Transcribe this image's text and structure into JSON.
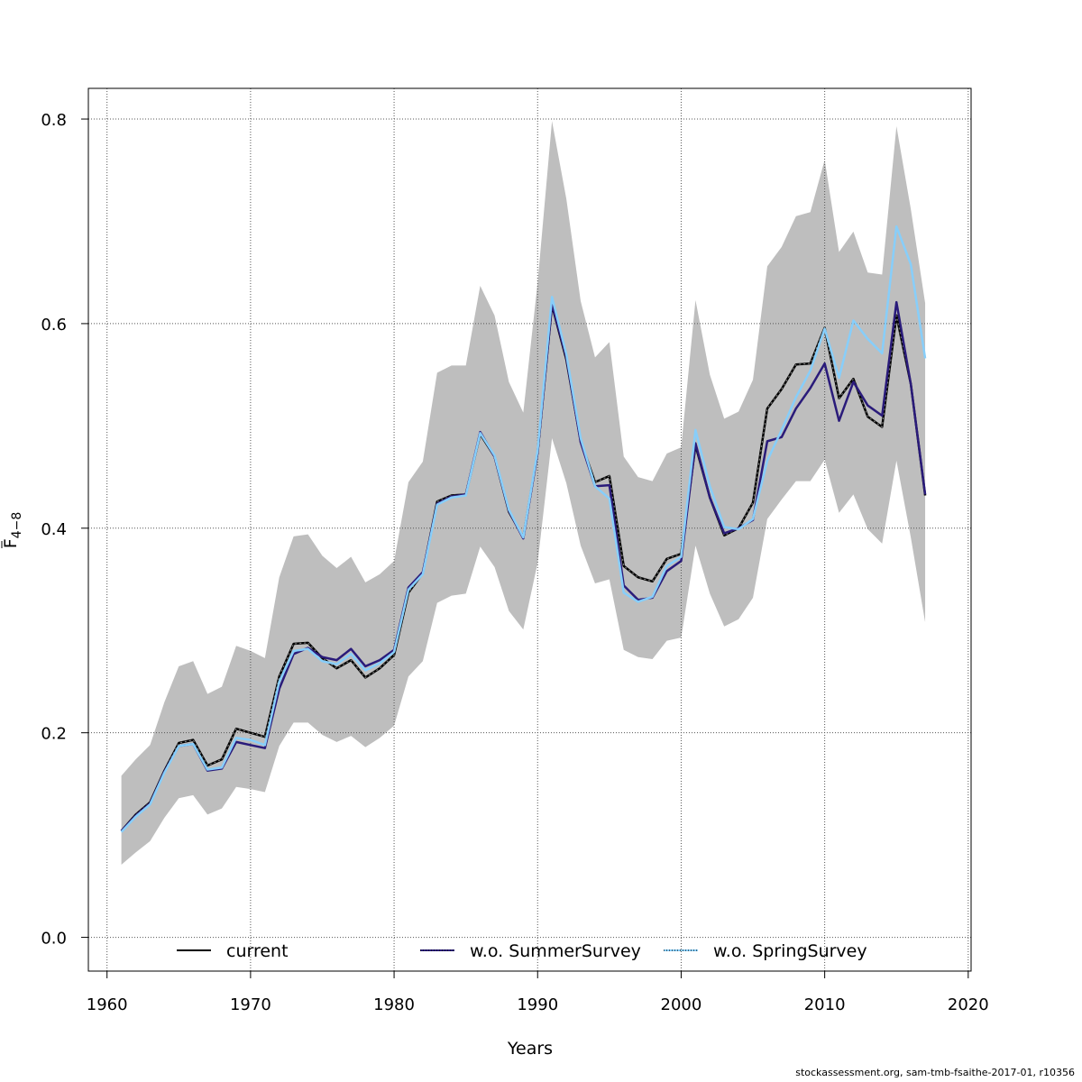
{
  "chart_data": {
    "type": "line",
    "title": "",
    "xlabel": "Years",
    "ylabel_main": "F",
    "ylabel_sub": "4−8",
    "xlim": [
      1958.7,
      2020.2
    ],
    "ylim": [
      -0.033,
      0.83
    ],
    "xticks": [
      1960,
      1970,
      1980,
      1990,
      2000,
      2010,
      2020
    ],
    "yticks": [
      0.0,
      0.2,
      0.4,
      0.6,
      0.8
    ],
    "xtick_labels": [
      "1960",
      "1970",
      "1980",
      "1990",
      "2000",
      "2010",
      "2020"
    ],
    "ytick_labels": [
      "0.0",
      "0.2",
      "0.4",
      "0.6",
      "0.8"
    ],
    "grid": true,
    "legend_position": "bottom",
    "x": [
      1961,
      1962,
      1963,
      1964,
      1965,
      1966,
      1967,
      1968,
      1969,
      1970,
      1971,
      1972,
      1973,
      1974,
      1975,
      1976,
      1977,
      1978,
      1979,
      1980,
      1981,
      1982,
      1983,
      1984,
      1985,
      1986,
      1987,
      1988,
      1989,
      1990,
      1991,
      1992,
      1993,
      1994,
      1995,
      1996,
      1997,
      1998,
      1999,
      2000,
      2001,
      2002,
      2003,
      2004,
      2005,
      2006,
      2007,
      2008,
      2009,
      2010,
      2011,
      2012,
      2013,
      2014,
      2015,
      2016,
      2017
    ],
    "confidence_band": {
      "color": "#bebebe",
      "upper": [
        0.158,
        0.174,
        0.188,
        0.23,
        0.265,
        0.27,
        0.238,
        0.245,
        0.285,
        0.28,
        0.273,
        0.352,
        0.392,
        0.394,
        0.373,
        0.361,
        0.372,
        0.347,
        0.355,
        0.368,
        0.445,
        0.465,
        0.552,
        0.559,
        0.559,
        0.637,
        0.608,
        0.543,
        0.513,
        0.64,
        0.798,
        0.722,
        0.622,
        0.567,
        0.582,
        0.47,
        0.45,
        0.446,
        0.473,
        0.479,
        0.623,
        0.55,
        0.507,
        0.514,
        0.545,
        0.656,
        0.675,
        0.705,
        0.709,
        0.76,
        0.67,
        0.69,
        0.65,
        0.648,
        0.793,
        0.712,
        0.62
      ],
      "lower": [
        0.071,
        0.083,
        0.094,
        0.117,
        0.136,
        0.139,
        0.12,
        0.126,
        0.147,
        0.145,
        0.142,
        0.187,
        0.21,
        0.21,
        0.198,
        0.191,
        0.197,
        0.186,
        0.195,
        0.207,
        0.255,
        0.27,
        0.327,
        0.334,
        0.336,
        0.382,
        0.362,
        0.319,
        0.301,
        0.366,
        0.488,
        0.444,
        0.383,
        0.346,
        0.35,
        0.281,
        0.274,
        0.272,
        0.29,
        0.293,
        0.383,
        0.336,
        0.304,
        0.311,
        0.332,
        0.409,
        0.428,
        0.446,
        0.446,
        0.467,
        0.415,
        0.433,
        0.399,
        0.385,
        0.466,
        0.391,
        0.308
      ]
    },
    "series": [
      {
        "name": "current",
        "color": "#000000",
        "style": "solid",
        "values": [
          0.104,
          0.12,
          0.132,
          0.163,
          0.19,
          0.193,
          0.168,
          0.174,
          0.204,
          0.2,
          0.196,
          0.255,
          0.287,
          0.288,
          0.273,
          0.263,
          0.271,
          0.254,
          0.263,
          0.276,
          0.337,
          0.356,
          0.426,
          0.432,
          0.433,
          0.492,
          0.47,
          0.416,
          0.391,
          0.474,
          0.618,
          0.565,
          0.485,
          0.445,
          0.451,
          0.363,
          0.352,
          0.348,
          0.37,
          0.375,
          0.481,
          0.43,
          0.393,
          0.4,
          0.425,
          0.517,
          0.536,
          0.56,
          0.561,
          0.596,
          0.527,
          0.546,
          0.509,
          0.499,
          0.608,
          0.541,
          0.432
        ]
      },
      {
        "name": "w.o. SummerSurvey",
        "color": "#2a1b7a",
        "style": "solid",
        "values": [
          0.104,
          0.119,
          0.131,
          0.162,
          0.187,
          0.189,
          0.163,
          0.165,
          0.191,
          0.188,
          0.185,
          0.243,
          0.277,
          0.283,
          0.274,
          0.271,
          0.282,
          0.265,
          0.271,
          0.281,
          0.342,
          0.357,
          0.424,
          0.431,
          0.433,
          0.494,
          0.47,
          0.417,
          0.39,
          0.474,
          0.619,
          0.567,
          0.484,
          0.441,
          0.442,
          0.344,
          0.33,
          0.332,
          0.358,
          0.368,
          0.483,
          0.43,
          0.395,
          0.4,
          0.408,
          0.485,
          0.489,
          0.517,
          0.537,
          0.561,
          0.505,
          0.543,
          0.52,
          0.51,
          0.621,
          0.541,
          0.433
        ]
      },
      {
        "name": "w.o. SpringSurvey",
        "color": "#87cefa",
        "style": "solid",
        "values": [
          0.103,
          0.118,
          0.13,
          0.161,
          0.187,
          0.189,
          0.164,
          0.166,
          0.195,
          0.193,
          0.188,
          0.25,
          0.28,
          0.282,
          0.27,
          0.267,
          0.277,
          0.261,
          0.268,
          0.279,
          0.34,
          0.355,
          0.423,
          0.43,
          0.432,
          0.493,
          0.471,
          0.418,
          0.391,
          0.476,
          0.626,
          0.57,
          0.488,
          0.441,
          0.429,
          0.337,
          0.328,
          0.333,
          0.363,
          0.372,
          0.496,
          0.441,
          0.401,
          0.399,
          0.409,
          0.466,
          0.496,
          0.528,
          0.554,
          0.595,
          0.547,
          0.603,
          0.585,
          0.571,
          0.695,
          0.658,
          0.566
        ]
      }
    ],
    "credit": "stockassessment.org, sam-tmb-fsaithe-2017-01, r10356"
  }
}
